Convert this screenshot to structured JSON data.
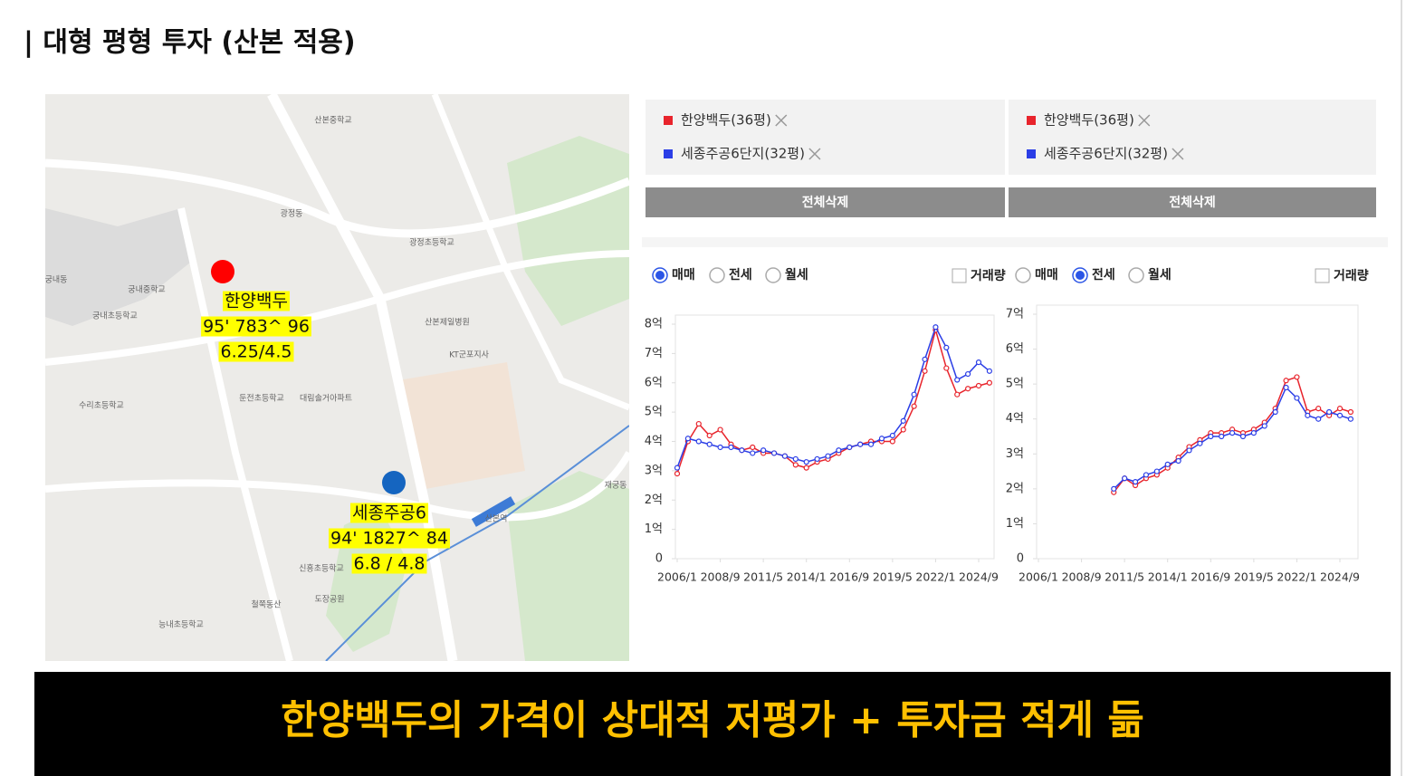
{
  "title": "| 대형 평형 투자 (산본 적용)",
  "map": {
    "labels": [
      "광정동",
      "산본중학교",
      "궁내중학교",
      "궁내초등학교",
      "둔전초등학교",
      "수리초등학교",
      "광정초등학교",
      "산본역",
      "산본제일병원",
      "KT군포지사",
      "대림솔거아파트",
      "도장공원",
      "신흥초등학교",
      "궁내동",
      "재궁동",
      "철쭉동산",
      "능내초등학교"
    ],
    "markers": [
      {
        "color": "#ff0000",
        "lines": [
          "한양백두",
          "95' 783^ 96",
          "6.25/4.5"
        ]
      },
      {
        "color": "#1565c0",
        "lines": [
          "세종주공6",
          "94' 1827^ 84",
          "6.8 / 4.8"
        ]
      }
    ]
  },
  "panels": [
    {
      "delete": "전체삭제",
      "options": [
        "매매",
        "전세",
        "월세"
      ],
      "selected": 0,
      "volume": "거래량"
    },
    {
      "delete": "전체삭제",
      "options": [
        "매매",
        "전세",
        "월세"
      ],
      "selected": 1,
      "volume": "거래량"
    }
  ],
  "chart_data": [
    {
      "type": "line",
      "x": [
        "2006/1",
        "2006/9",
        "2007/5",
        "2008/1",
        "2008/9",
        "2009/5",
        "2010/1",
        "2010/9",
        "2011/5",
        "2012/1",
        "2012/9",
        "2013/5",
        "2014/1",
        "2014/9",
        "2015/5",
        "2016/1",
        "2016/9",
        "2017/5",
        "2018/1",
        "2018/9",
        "2019/5",
        "2020/1",
        "2020/9",
        "2021/5",
        "2022/1",
        "2022/9",
        "2023/5",
        "2024/1",
        "2024/9",
        "2025/5"
      ],
      "series": [
        {
          "name": "한양백두(36평)",
          "color": "#e8242c",
          "values": [
            2.9,
            4.0,
            4.6,
            4.2,
            4.4,
            3.9,
            3.7,
            3.8,
            3.6,
            3.6,
            3.5,
            3.2,
            3.1,
            3.3,
            3.4,
            3.6,
            3.8,
            3.9,
            4.0,
            4.0,
            4.0,
            4.4,
            5.2,
            6.4,
            7.8,
            6.5,
            5.6,
            5.8,
            5.9,
            6.0
          ]
        },
        {
          "name": "세종주공6단지(32평)",
          "color": "#2b3ee6",
          "values": [
            3.1,
            4.1,
            4.0,
            3.9,
            3.8,
            3.8,
            3.7,
            3.6,
            3.7,
            3.6,
            3.5,
            3.4,
            3.3,
            3.4,
            3.5,
            3.7,
            3.8,
            3.9,
            3.9,
            4.1,
            4.2,
            4.7,
            5.6,
            6.8,
            7.9,
            7.2,
            6.1,
            6.3,
            6.7,
            6.4
          ]
        }
      ],
      "xticks": [
        "2006/1",
        "2008/9",
        "2011/5",
        "2014/1",
        "2016/9",
        "2019/5",
        "2022/1",
        "2024/9"
      ],
      "ylim": [
        0,
        8
      ],
      "yticks": [
        0,
        {
          "value": 1,
          "label": "1억"
        },
        {
          "value": 2,
          "label": "2억"
        },
        {
          "value": 3,
          "label": "3억"
        },
        {
          "value": 4,
          "label": "4억"
        },
        {
          "value": 5,
          "label": "5억"
        },
        {
          "value": 6,
          "label": "6억"
        },
        {
          "value": 7,
          "label": "7억"
        },
        {
          "value": 8,
          "label": "8억"
        }
      ]
    },
    {
      "type": "line",
      "x": [
        "2010/9",
        "2011/5",
        "2012/1",
        "2012/9",
        "2013/5",
        "2014/1",
        "2014/9",
        "2015/5",
        "2016/1",
        "2016/9",
        "2017/5",
        "2018/1",
        "2018/9",
        "2019/5",
        "2020/1",
        "2020/9",
        "2021/5",
        "2022/1",
        "2022/9",
        "2023/5",
        "2024/1",
        "2024/9",
        "2025/5"
      ],
      "series": [
        {
          "name": "한양백두(36평)",
          "color": "#e8242c",
          "values": [
            1.9,
            2.3,
            2.1,
            2.3,
            2.4,
            2.6,
            2.9,
            3.2,
            3.4,
            3.6,
            3.6,
            3.7,
            3.6,
            3.7,
            3.9,
            4.3,
            5.1,
            5.2,
            4.2,
            4.3,
            4.1,
            4.3,
            4.2
          ]
        },
        {
          "name": "세종주공6단지(32평)",
          "color": "#2b3ee6",
          "values": [
            2.0,
            2.3,
            2.2,
            2.4,
            2.5,
            2.7,
            2.8,
            3.1,
            3.3,
            3.5,
            3.5,
            3.6,
            3.5,
            3.6,
            3.8,
            4.2,
            4.9,
            4.6,
            4.1,
            4.0,
            4.2,
            4.1,
            4.0
          ]
        }
      ],
      "xticks": [
        "2006/1",
        "2008/9",
        "2011/5",
        "2014/1",
        "2016/9",
        "2019/5",
        "2022/1",
        "2024/9"
      ],
      "ylim": [
        0,
        7
      ],
      "yticks": [
        0,
        {
          "value": 1,
          "label": "1억"
        },
        {
          "value": 2,
          "label": "2억"
        },
        {
          "value": 3,
          "label": "3억"
        },
        {
          "value": 4,
          "label": "4억"
        },
        {
          "value": 5,
          "label": "5억"
        },
        {
          "value": 6,
          "label": "6억"
        },
        {
          "value": 7,
          "label": "7억"
        }
      ]
    }
  ],
  "banner": "한양백두의 가격이 상대적 저평가 + 투자금 적게 듦"
}
